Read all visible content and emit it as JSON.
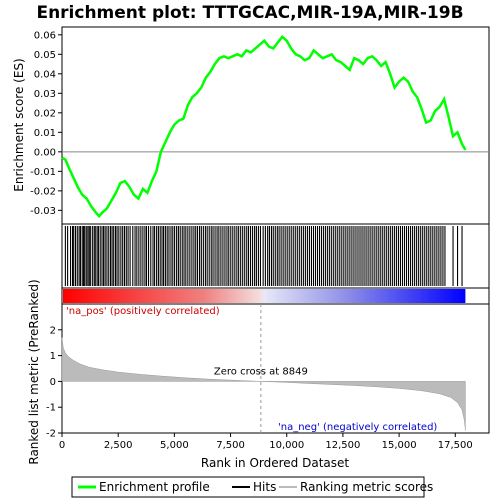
{
  "chart_data": {
    "type": "line",
    "title": "Enrichment plot: TTTGCAC,MIR-19A,MIR-19B",
    "xlabel": "Rank in Ordered Dataset",
    "top_panel": {
      "ylabel": "Enrichment score (ES)",
      "ylim": [
        -0.037,
        0.064
      ],
      "yticks": [
        "-0.03",
        "-0.02",
        "-0.01",
        "0.00",
        "0.01",
        "0.02",
        "0.03",
        "0.04",
        "0.05",
        "0.06"
      ],
      "ytick_values": [
        -0.03,
        -0.02,
        -0.01,
        0.0,
        0.01,
        0.02,
        0.03,
        0.04,
        0.05,
        0.06
      ],
      "series_color": "#00ff00",
      "es_profile": [
        [
          0,
          -0.003
        ],
        [
          150,
          -0.004
        ],
        [
          300,
          -0.008
        ],
        [
          500,
          -0.013
        ],
        [
          700,
          -0.018
        ],
        [
          900,
          -0.022
        ],
        [
          1100,
          -0.024
        ],
        [
          1300,
          -0.028
        ],
        [
          1500,
          -0.031
        ],
        [
          1650,
          -0.033
        ],
        [
          1800,
          -0.031
        ],
        [
          2000,
          -0.029
        ],
        [
          2200,
          -0.025
        ],
        [
          2400,
          -0.021
        ],
        [
          2600,
          -0.016
        ],
        [
          2800,
          -0.015
        ],
        [
          3000,
          -0.018
        ],
        [
          3200,
          -0.022
        ],
        [
          3400,
          -0.024
        ],
        [
          3600,
          -0.019
        ],
        [
          3800,
          -0.021
        ],
        [
          4000,
          -0.015
        ],
        [
          4200,
          -0.01
        ],
        [
          4400,
          0.0
        ],
        [
          4600,
          0.005
        ],
        [
          4800,
          0.01
        ],
        [
          5000,
          0.014
        ],
        [
          5200,
          0.016
        ],
        [
          5400,
          0.017
        ],
        [
          5600,
          0.024
        ],
        [
          5800,
          0.028
        ],
        [
          6000,
          0.03
        ],
        [
          6200,
          0.033
        ],
        [
          6400,
          0.038
        ],
        [
          6600,
          0.041
        ],
        [
          6800,
          0.045
        ],
        [
          7000,
          0.048
        ],
        [
          7200,
          0.049
        ],
        [
          7400,
          0.048
        ],
        [
          7600,
          0.049
        ],
        [
          7800,
          0.05
        ],
        [
          8000,
          0.049
        ],
        [
          8200,
          0.052
        ],
        [
          8400,
          0.051
        ],
        [
          8600,
          0.053
        ],
        [
          8800,
          0.055
        ],
        [
          9000,
          0.057
        ],
        [
          9200,
          0.054
        ],
        [
          9400,
          0.053
        ],
        [
          9600,
          0.056
        ],
        [
          9800,
          0.059
        ],
        [
          10000,
          0.057
        ],
        [
          10200,
          0.053
        ],
        [
          10400,
          0.05
        ],
        [
          10600,
          0.049
        ],
        [
          10800,
          0.047
        ],
        [
          11000,
          0.048
        ],
        [
          11200,
          0.052
        ],
        [
          11400,
          0.05
        ],
        [
          11600,
          0.048
        ],
        [
          11800,
          0.049
        ],
        [
          12000,
          0.05
        ],
        [
          12200,
          0.047
        ],
        [
          12400,
          0.046
        ],
        [
          12600,
          0.044
        ],
        [
          12800,
          0.042
        ],
        [
          13000,
          0.048
        ],
        [
          13200,
          0.047
        ],
        [
          13400,
          0.045
        ],
        [
          13600,
          0.048
        ],
        [
          13800,
          0.049
        ],
        [
          14000,
          0.047
        ],
        [
          14200,
          0.044
        ],
        [
          14400,
          0.046
        ],
        [
          14600,
          0.04
        ],
        [
          14800,
          0.033
        ],
        [
          15000,
          0.036
        ],
        [
          15200,
          0.038
        ],
        [
          15400,
          0.036
        ],
        [
          15600,
          0.031
        ],
        [
          15800,
          0.028
        ],
        [
          16000,
          0.022
        ],
        [
          16200,
          0.015
        ],
        [
          16400,
          0.016
        ],
        [
          16600,
          0.021
        ],
        [
          16800,
          0.023
        ],
        [
          17000,
          0.027
        ],
        [
          17200,
          0.018
        ],
        [
          17400,
          0.008
        ],
        [
          17600,
          0.01
        ],
        [
          17800,
          0.004
        ],
        [
          17950,
          0.001
        ]
      ]
    },
    "hits_panel": {
      "hit_ranks": [
        150,
        250,
        380,
        470,
        520,
        600,
        680,
        760,
        820,
        900,
        960,
        1010,
        1080,
        1150,
        1210,
        1260,
        1350,
        1430,
        1480,
        1560,
        1620,
        1700,
        1780,
        1850,
        1920,
        2000,
        2080,
        2160,
        2230,
        2300,
        2380,
        2450,
        2530,
        2620,
        2700,
        2780,
        2860,
        2940,
        3030,
        3150,
        3250,
        3330,
        3420,
        3510,
        3600,
        3690,
        3760,
        3850,
        3950,
        4050,
        4120,
        4210,
        4290,
        4370,
        4450,
        4520,
        4600,
        4680,
        4760,
        4850,
        4930,
        5010,
        5100,
        5180,
        5260,
        5350,
        5430,
        5510,
        5600,
        5690,
        5780,
        5870,
        5950,
        6030,
        6120,
        6200,
        6290,
        6380,
        6460,
        6550,
        6640,
        6720,
        6810,
        6900,
        6980,
        7070,
        7160,
        7250,
        7340,
        7420,
        7510,
        7600,
        7690,
        7780,
        7860,
        7950,
        8040,
        8130,
        8220,
        8300,
        8390,
        8480,
        8570,
        8650,
        8740,
        8830,
        8950,
        9050,
        9150,
        9230,
        9320,
        9400,
        9490,
        9580,
        9660,
        9750,
        9840,
        9930,
        10020,
        10110,
        10200,
        10290,
        10380,
        10470,
        10560,
        10650,
        10740,
        10830,
        10920,
        11010,
        11100,
        11190,
        11280,
        11370,
        11460,
        11550,
        11640,
        11730,
        11820,
        11910,
        12000,
        12090,
        12180,
        12270,
        12360,
        12450,
        12540,
        12630,
        12720,
        12810,
        12900,
        12990,
        13080,
        13170,
        13260,
        13350,
        13440,
        13530,
        13620,
        13710,
        13800,
        13890,
        13980,
        14070,
        14160,
        14250,
        14340,
        14430,
        14520,
        14610,
        14700,
        14790,
        14880,
        14970,
        15060,
        15150,
        15240,
        15330,
        15420,
        15510,
        15600,
        15690,
        15780,
        15870,
        15960,
        16050,
        16140,
        16230,
        16320,
        16410,
        16500,
        16590,
        16680,
        16770,
        16860,
        16950,
        17040,
        17400,
        17600,
        17800
      ]
    },
    "bottom_panel": {
      "ylabel": "Ranked list metric (PreRanked)",
      "ylim": [
        -2,
        3
      ],
      "yticks": [
        "-2",
        "-1",
        "0",
        "1",
        "2"
      ],
      "ytick_values": [
        -2,
        -1,
        0,
        1,
        2
      ],
      "metric_profile": [
        [
          0,
          1.7
        ],
        [
          60,
          1.3
        ],
        [
          150,
          1.1
        ],
        [
          300,
          0.95
        ],
        [
          500,
          0.82
        ],
        [
          800,
          0.68
        ],
        [
          1200,
          0.55
        ],
        [
          1800,
          0.45
        ],
        [
          2500,
          0.36
        ],
        [
          3500,
          0.27
        ],
        [
          4500,
          0.2
        ],
        [
          5500,
          0.14
        ],
        [
          6500,
          0.09
        ],
        [
          7500,
          0.05
        ],
        [
          8849,
          0.0
        ],
        [
          10000,
          -0.04
        ],
        [
          11000,
          -0.08
        ],
        [
          12000,
          -0.12
        ],
        [
          13000,
          -0.16
        ],
        [
          14000,
          -0.21
        ],
        [
          15000,
          -0.27
        ],
        [
          16000,
          -0.36
        ],
        [
          16800,
          -0.48
        ],
        [
          17300,
          -0.62
        ],
        [
          17600,
          -0.82
        ],
        [
          17800,
          -1.1
        ],
        [
          17900,
          -1.5
        ],
        [
          17950,
          -1.9
        ]
      ],
      "zero_cross_rank": 8849,
      "zero_cross_label": "Zero cross at 8849",
      "pos_label": "'na_pos' (positively correlated)",
      "neg_label": "'na_neg' (negatively correlated)"
    },
    "x": {
      "xlim": [
        0,
        19000
      ],
      "ticks": [
        "0",
        "2,500",
        "5,000",
        "7,500",
        "10,000",
        "12,500",
        "15,000",
        "17,500"
      ],
      "tick_values": [
        0,
        2500,
        5000,
        7500,
        10000,
        12500,
        15000,
        17500
      ],
      "n_genes": 17950
    },
    "legend": {
      "items": [
        {
          "label": "Enrichment profile",
          "color": "#00ff00"
        },
        {
          "label": "Hits",
          "color": "#000000"
        },
        {
          "label": "Ranking metric scores",
          "color": "#bbbbbb"
        }
      ]
    }
  }
}
